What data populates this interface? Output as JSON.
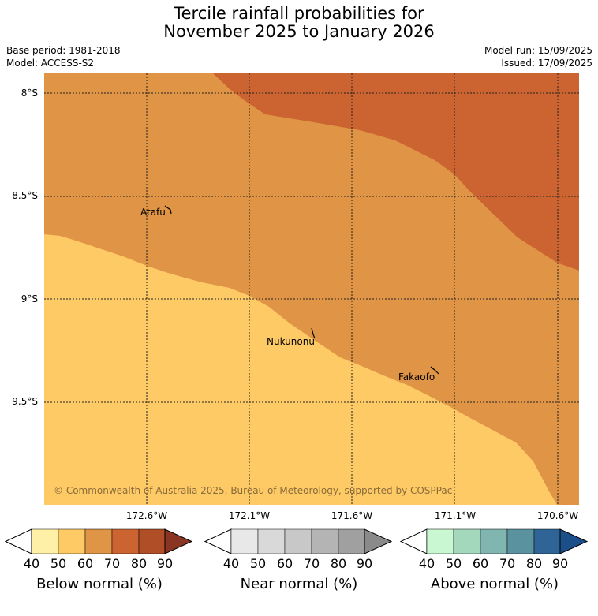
{
  "title": {
    "line1": "Tercile rainfall probabilities for",
    "line2": "November 2025 to January 2026"
  },
  "info": {
    "base_period": "Base period: 1981-2018",
    "model": "Model: ACCESS-S2",
    "model_run": "Model run: 15/09/2025",
    "issued": "Issued: 17/09/2025"
  },
  "map": {
    "lat_labels": [
      "8°S",
      "8.5°S",
      "9°S",
      "9.5°S"
    ],
    "lon_labels": [
      "172.6°W",
      "172.1°W",
      "171.6°W",
      "171.1°W",
      "170.6°W"
    ],
    "places": [
      "Atafu",
      "Nukunonu",
      "Fakaofo"
    ],
    "copyright": "© Commonwealth of Australia 2025, Bureau of Meteorology, supported by COSPPac",
    "colors": {
      "below_50_60": "#fdca65",
      "below_60_70": "#e09445",
      "below_70_80": "#cb6431"
    }
  },
  "legends": [
    {
      "label": "Below normal (%)",
      "ticks": [
        "40",
        "50",
        "60",
        "70",
        "80",
        "90"
      ],
      "colors": [
        "#fff0a8",
        "#fdca65",
        "#e09445",
        "#cb6431",
        "#b04e27",
        "#8a3523"
      ]
    },
    {
      "label": "Near normal (%)",
      "ticks": [
        "40",
        "50",
        "60",
        "70",
        "80",
        "90"
      ],
      "colors": [
        "#e8e8e8",
        "#d9d9d9",
        "#c8c8c8",
        "#b4b4b4",
        "#a0a0a0",
        "#8a8a8a"
      ]
    },
    {
      "label": "Above normal (%)",
      "ticks": [
        "40",
        "50",
        "60",
        "70",
        "80",
        "90"
      ],
      "colors": [
        "#c8f7d2",
        "#a3d8bc",
        "#80b5b0",
        "#5a92a0",
        "#2e6496",
        "#1b4f8a"
      ]
    }
  ]
}
